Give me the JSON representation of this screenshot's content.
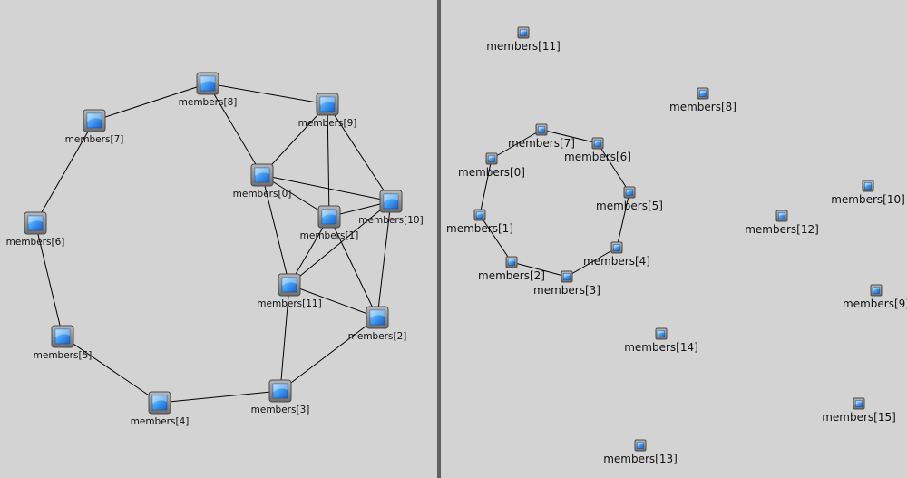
{
  "colors": {
    "background": "#d3d3d3",
    "edge": "#000000",
    "divider": "#606060",
    "icon_frame": "#808080",
    "icon_screen_top": "#6fc3ff",
    "icon_screen_bottom": "#1f6fd8"
  },
  "node_icon": "computer-screen-icon",
  "left_graph": {
    "nodes": [
      {
        "id": 0,
        "label": "members[0]"
      },
      {
        "id": 1,
        "label": "members[1]"
      },
      {
        "id": 2,
        "label": "members[2]"
      },
      {
        "id": 3,
        "label": "members[3]"
      },
      {
        "id": 4,
        "label": "members[4]"
      },
      {
        "id": 5,
        "label": "members[5]"
      },
      {
        "id": 6,
        "label": "members[6]"
      },
      {
        "id": 7,
        "label": "members[7]"
      },
      {
        "id": 8,
        "label": "members[8]"
      },
      {
        "id": 9,
        "label": "members[9]"
      },
      {
        "id": 10,
        "label": "members[10]"
      },
      {
        "id": 11,
        "label": "members[11]"
      }
    ],
    "edges": [
      [
        7,
        8
      ],
      [
        8,
        9
      ],
      [
        7,
        6
      ],
      [
        6,
        5
      ],
      [
        5,
        4
      ],
      [
        4,
        3
      ],
      [
        8,
        0
      ],
      [
        0,
        9
      ],
      [
        0,
        10
      ],
      [
        0,
        1
      ],
      [
        0,
        11
      ],
      [
        9,
        1
      ],
      [
        9,
        10
      ],
      [
        10,
        1
      ],
      [
        10,
        2
      ],
      [
        10,
        11
      ],
      [
        1,
        11
      ],
      [
        1,
        2
      ],
      [
        11,
        2
      ],
      [
        11,
        3
      ],
      [
        3,
        2
      ]
    ]
  },
  "right_graph": {
    "nodes": [
      {
        "id": 0,
        "label": "members[0]"
      },
      {
        "id": 1,
        "label": "members[1]"
      },
      {
        "id": 2,
        "label": "members[2]"
      },
      {
        "id": 3,
        "label": "members[3]"
      },
      {
        "id": 4,
        "label": "members[4]"
      },
      {
        "id": 5,
        "label": "members[5]"
      },
      {
        "id": 6,
        "label": "members[6]"
      },
      {
        "id": 7,
        "label": "members[7]"
      },
      {
        "id": 8,
        "label": "members[8]"
      },
      {
        "id": 9,
        "label": "members[9]"
      },
      {
        "id": 10,
        "label": "members[10]"
      },
      {
        "id": 11,
        "label": "members[11]"
      },
      {
        "id": 12,
        "label": "members[12]"
      },
      {
        "id": 13,
        "label": "members[13]"
      },
      {
        "id": 14,
        "label": "members[14]"
      },
      {
        "id": 15,
        "label": "members[15]"
      }
    ],
    "edges": [
      [
        0,
        7
      ],
      [
        7,
        6
      ],
      [
        6,
        5
      ],
      [
        5,
        4
      ],
      [
        4,
        3
      ],
      [
        3,
        2
      ],
      [
        2,
        1
      ],
      [
        1,
        0
      ]
    ]
  }
}
